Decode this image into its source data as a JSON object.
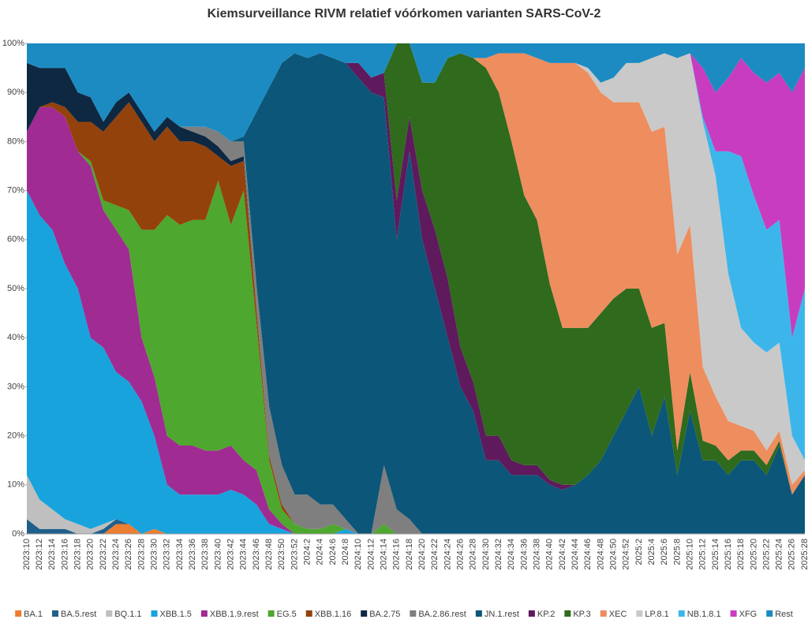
{
  "chart_data": {
    "type": "stacked-area",
    "title": "Kiemsurveillance RIVM relatief vóórkomen varianten SARS-CoV-2",
    "categories": [
      "2023:10",
      "2023:12",
      "2023:14",
      "2023:16",
      "2023:18",
      "2023:20",
      "2023:22",
      "2023:24",
      "2023:26",
      "2023:28",
      "2023:30",
      "2023:32",
      "2023:34",
      "2023:36",
      "2023:38",
      "2023:40",
      "2023:42",
      "2023:44",
      "2023:46",
      "2023:48",
      "2023:50",
      "2023:52",
      "2024:2",
      "2024:4",
      "2024:6",
      "2024:8",
      "2024:10",
      "2024:12",
      "2024:14",
      "2024:16",
      "2024:18",
      "2024:20",
      "2024:22",
      "2024:24",
      "2024:26",
      "2024:28",
      "2024:30",
      "2024:32",
      "2024:34",
      "2024:36",
      "2024:38",
      "2024:40",
      "2024:42",
      "2024:44",
      "2024:46",
      "2024:48",
      "2024:50",
      "2024:52",
      "2025:2",
      "2025:4",
      "2025:6",
      "2025:8",
      "2025:10",
      "2025:12",
      "2025:14",
      "2025:16",
      "2025:18",
      "2025:20",
      "2025:22",
      "2025:24",
      "2025:26",
      "2025:28"
    ],
    "ylim": [
      0,
      100
    ],
    "yticks": [
      {
        "value": 0,
        "label": "0%"
      },
      {
        "value": 10,
        "label": "10%"
      },
      {
        "value": 20,
        "label": "20%"
      },
      {
        "value": 30,
        "label": "30%"
      },
      {
        "value": 40,
        "label": "40%"
      },
      {
        "value": 50,
        "label": "50%"
      },
      {
        "value": 60,
        "label": "60%"
      },
      {
        "value": 70,
        "label": "70%"
      },
      {
        "value": 80,
        "label": "80%"
      },
      {
        "value": 90,
        "label": "90%"
      },
      {
        "value": 100,
        "label": "100%"
      }
    ],
    "legend": "bottom",
    "series": [
      {
        "name": "BA.1",
        "color": "#ed7d31",
        "values": [
          0,
          0,
          0,
          0,
          0,
          0,
          0,
          2,
          2,
          0,
          1,
          0,
          0,
          0,
          0,
          0,
          0,
          0,
          0,
          0,
          0,
          0,
          0,
          0,
          0,
          0,
          0,
          0,
          0,
          0,
          0,
          0,
          0,
          0,
          0,
          0,
          0,
          0,
          0,
          0,
          0,
          0,
          0,
          0,
          0,
          0,
          0,
          0,
          0,
          0,
          0,
          0,
          0,
          0,
          0,
          0,
          0,
          0,
          0,
          0,
          0,
          0
        ]
      },
      {
        "name": "BA.5.rest",
        "color": "#1f5f8b",
        "values": [
          3,
          1,
          1,
          1,
          0,
          0,
          1,
          1,
          0,
          0,
          0,
          0,
          0,
          0,
          0,
          0,
          0,
          0,
          0,
          0,
          0,
          0,
          0,
          0,
          0,
          0,
          0,
          0,
          0,
          0,
          0,
          0,
          0,
          0,
          0,
          0,
          0,
          0,
          0,
          0,
          0,
          0,
          0,
          0,
          0,
          0,
          0,
          0,
          0,
          0,
          0,
          0,
          0,
          0,
          0,
          0,
          0,
          0,
          0,
          0,
          0,
          0
        ]
      },
      {
        "name": "BQ.1.1",
        "color": "#bfbfbf",
        "values": [
          9,
          6,
          4,
          2,
          2,
          1,
          1,
          0,
          0,
          0,
          0,
          0,
          0,
          0,
          0,
          0,
          0,
          0,
          0,
          0,
          0,
          0,
          0,
          0,
          0,
          0,
          0,
          0,
          0,
          0,
          0,
          0,
          0,
          0,
          0,
          0,
          0,
          0,
          0,
          0,
          0,
          0,
          0,
          0,
          0,
          0,
          0,
          0,
          0,
          0,
          0,
          0,
          0,
          0,
          0,
          0,
          0,
          0,
          0,
          0,
          0,
          0
        ]
      },
      {
        "name": "XBB.1.5",
        "color": "#18a3dc",
        "values": [
          58,
          58,
          57,
          52,
          48,
          39,
          36,
          30,
          29,
          27,
          19,
          10,
          8,
          8,
          8,
          8,
          9,
          8,
          6,
          2,
          1,
          0,
          0,
          0,
          0,
          1,
          0,
          0,
          0,
          0,
          0,
          0,
          0,
          0,
          0,
          0,
          0,
          0,
          0,
          0,
          0,
          0,
          0,
          0,
          0,
          0,
          0,
          0,
          0,
          0,
          0,
          0,
          0,
          0,
          0,
          0,
          0,
          0,
          0,
          0,
          0,
          0
        ]
      },
      {
        "name": "XBB.1.9.rest",
        "color": "#a02b93",
        "values": [
          12,
          22,
          25,
          30,
          28,
          35,
          28,
          29,
          27,
          13,
          12,
          10,
          10,
          10,
          9,
          9,
          9,
          7,
          7,
          3,
          1,
          0,
          0,
          0,
          0,
          0,
          0,
          0,
          0,
          0,
          0,
          0,
          0,
          0,
          0,
          0,
          0,
          0,
          0,
          0,
          0,
          0,
          0,
          0,
          0,
          0,
          0,
          0,
          0,
          0,
          0,
          0,
          0,
          0,
          0,
          0,
          0,
          0,
          0,
          0,
          0,
          0
        ]
      },
      {
        "name": "EG.5",
        "color": "#4ea72e",
        "values": [
          0,
          0,
          0,
          0,
          0,
          1,
          2,
          5,
          8,
          22,
          30,
          45,
          45,
          46,
          47,
          55,
          45,
          55,
          30,
          10,
          3,
          2,
          1,
          1,
          2,
          0,
          0,
          0,
          2,
          0,
          0,
          0,
          0,
          0,
          0,
          0,
          0,
          0,
          0,
          0,
          0,
          0,
          0,
          0,
          0,
          0,
          0,
          0,
          0,
          0,
          0,
          0,
          0,
          0,
          0,
          0,
          0,
          0,
          0,
          0,
          0,
          0
        ]
      },
      {
        "name": "XBB.1.16",
        "color": "#94420b",
        "values": [
          0,
          0,
          1,
          2,
          6,
          8,
          14,
          18,
          22,
          22,
          18,
          18,
          17,
          16,
          15,
          5,
          12,
          6,
          3,
          1,
          1,
          0,
          0,
          0,
          0,
          0,
          0,
          0,
          0,
          0,
          0,
          0,
          0,
          0,
          0,
          0,
          0,
          0,
          0,
          0,
          0,
          0,
          0,
          0,
          0,
          0,
          0,
          0,
          0,
          0,
          0,
          0,
          0,
          0,
          0,
          0,
          0,
          0,
          0,
          0,
          0,
          0
        ]
      },
      {
        "name": "BA.2.75",
        "color": "#0e2841",
        "values": [
          14,
          8,
          7,
          8,
          6,
          5,
          2,
          3,
          2,
          2,
          2,
          2,
          3,
          2,
          2,
          2,
          1,
          1,
          0,
          0,
          0,
          0,
          0,
          0,
          0,
          0,
          0,
          0,
          0,
          0,
          0,
          0,
          0,
          0,
          0,
          0,
          0,
          0,
          0,
          0,
          0,
          0,
          0,
          0,
          0,
          0,
          0,
          0,
          0,
          0,
          0,
          0,
          0,
          0,
          0,
          0,
          0,
          0,
          0,
          0,
          0,
          0
        ]
      },
      {
        "name": "BA.2.86.rest",
        "color": "#7f7f7f",
        "values": [
          0,
          0,
          0,
          0,
          0,
          0,
          0,
          0,
          0,
          0,
          0,
          0,
          0,
          1,
          2,
          3,
          4,
          3,
          5,
          10,
          8,
          6,
          7,
          5,
          4,
          2,
          0,
          0,
          12,
          5,
          3,
          0,
          0,
          0,
          0,
          0,
          0,
          0,
          0,
          0,
          0,
          0,
          0,
          0,
          0,
          0,
          0,
          0,
          0,
          0,
          0,
          0,
          0,
          0,
          0,
          0,
          0,
          0,
          0,
          0,
          0,
          0
        ]
      },
      {
        "name": "JN.1.rest",
        "color": "#0c5679",
        "values": [
          0,
          0,
          0,
          0,
          0,
          0,
          0,
          0,
          0,
          0,
          0,
          0,
          0,
          0,
          0,
          0,
          0,
          1,
          35,
          65,
          82,
          90,
          89,
          92,
          91,
          93,
          93,
          90,
          75,
          55,
          75,
          60,
          50,
          40,
          30,
          25,
          15,
          15,
          12,
          12,
          12,
          10,
          9,
          10,
          12,
          15,
          20,
          25,
          30,
          20,
          28,
          12,
          25,
          15,
          15,
          12,
          15,
          15,
          12,
          18,
          8,
          12
        ]
      },
      {
        "name": "KP.2",
        "color": "#5e1a5c",
        "values": [
          0,
          0,
          0,
          0,
          0,
          0,
          0,
          0,
          0,
          0,
          0,
          0,
          0,
          0,
          0,
          0,
          0,
          0,
          0,
          0,
          0,
          0,
          0,
          0,
          0,
          0,
          3,
          3,
          5,
          8,
          7,
          10,
          12,
          12,
          8,
          6,
          5,
          5,
          3,
          2,
          2,
          1,
          1,
          0,
          0,
          0,
          0,
          0,
          0,
          0,
          0,
          0,
          0,
          0,
          0,
          0,
          0,
          0,
          0,
          0,
          0,
          0
        ]
      },
      {
        "name": "KP.3",
        "color": "#2f6a1d",
        "values": [
          0,
          0,
          0,
          0,
          0,
          0,
          0,
          0,
          0,
          0,
          0,
          0,
          0,
          0,
          0,
          0,
          0,
          0,
          0,
          0,
          0,
          0,
          0,
          0,
          0,
          0,
          0,
          0,
          0,
          32,
          15,
          22,
          30,
          45,
          60,
          66,
          75,
          70,
          65,
          55,
          50,
          40,
          32,
          32,
          30,
          30,
          28,
          25,
          20,
          22,
          15,
          5,
          8,
          4,
          3,
          3,
          2,
          2,
          2,
          1,
          0,
          0
        ]
      },
      {
        "name": "XEC",
        "color": "#ee8d5e",
        "values": [
          0,
          0,
          0,
          0,
          0,
          0,
          0,
          0,
          0,
          0,
          0,
          0,
          0,
          0,
          0,
          0,
          0,
          0,
          0,
          0,
          0,
          0,
          0,
          0,
          0,
          0,
          0,
          0,
          0,
          0,
          0,
          0,
          0,
          0,
          0,
          0,
          2,
          8,
          18,
          29,
          33,
          45,
          54,
          54,
          52,
          45,
          40,
          38,
          38,
          40,
          40,
          40,
          30,
          15,
          10,
          8,
          5,
          4,
          3,
          2,
          2,
          1
        ]
      },
      {
        "name": "LP.8.1",
        "color": "#c9c9c9",
        "values": [
          0,
          0,
          0,
          0,
          0,
          0,
          0,
          0,
          0,
          0,
          0,
          0,
          0,
          0,
          0,
          0,
          0,
          0,
          0,
          0,
          0,
          0,
          0,
          0,
          0,
          0,
          0,
          0,
          0,
          0,
          0,
          0,
          0,
          0,
          0,
          0,
          0,
          0,
          0,
          0,
          0,
          0,
          0,
          0,
          1,
          2,
          5,
          8,
          8,
          15,
          15,
          40,
          35,
          50,
          45,
          30,
          20,
          18,
          20,
          18,
          10,
          2
        ]
      },
      {
        "name": "NB.1.8.1",
        "color": "#3cb6ea",
        "values": [
          0,
          0,
          0,
          0,
          0,
          0,
          0,
          0,
          0,
          0,
          0,
          0,
          0,
          0,
          0,
          0,
          0,
          0,
          0,
          0,
          0,
          0,
          0,
          0,
          0,
          0,
          0,
          0,
          0,
          0,
          0,
          0,
          0,
          0,
          0,
          0,
          0,
          0,
          0,
          0,
          0,
          0,
          0,
          0,
          0,
          0,
          0,
          0,
          0,
          0,
          0,
          0,
          0,
          1,
          5,
          25,
          35,
          30,
          25,
          25,
          20,
          35
        ]
      },
      {
        "name": "XFG",
        "color": "#c83cbf",
        "values": [
          0,
          0,
          0,
          0,
          0,
          0,
          0,
          0,
          0,
          0,
          0,
          0,
          0,
          0,
          0,
          0,
          0,
          0,
          0,
          0,
          0,
          0,
          0,
          0,
          0,
          0,
          0,
          0,
          0,
          0,
          0,
          0,
          0,
          0,
          0,
          0,
          0,
          0,
          0,
          0,
          0,
          0,
          0,
          0,
          0,
          0,
          0,
          0,
          0,
          0,
          0,
          0,
          0,
          10,
          12,
          15,
          20,
          25,
          30,
          30,
          50,
          45
        ]
      },
      {
        "name": "Rest",
        "color": "#1c8bc2",
        "values": [
          4,
          5,
          5,
          5,
          10,
          11,
          16,
          12,
          10,
          14,
          18,
          15,
          17,
          17,
          17,
          18,
          20,
          19,
          14,
          9,
          4,
          2,
          3,
          2,
          3,
          4,
          4,
          7,
          6,
          0,
          0,
          8,
          8,
          3,
          2,
          3,
          3,
          2,
          2,
          2,
          3,
          4,
          4,
          4,
          5,
          8,
          7,
          4,
          4,
          3,
          2,
          3,
          2,
          5,
          10,
          7,
          3,
          6,
          8,
          6,
          10,
          5
        ]
      }
    ]
  }
}
